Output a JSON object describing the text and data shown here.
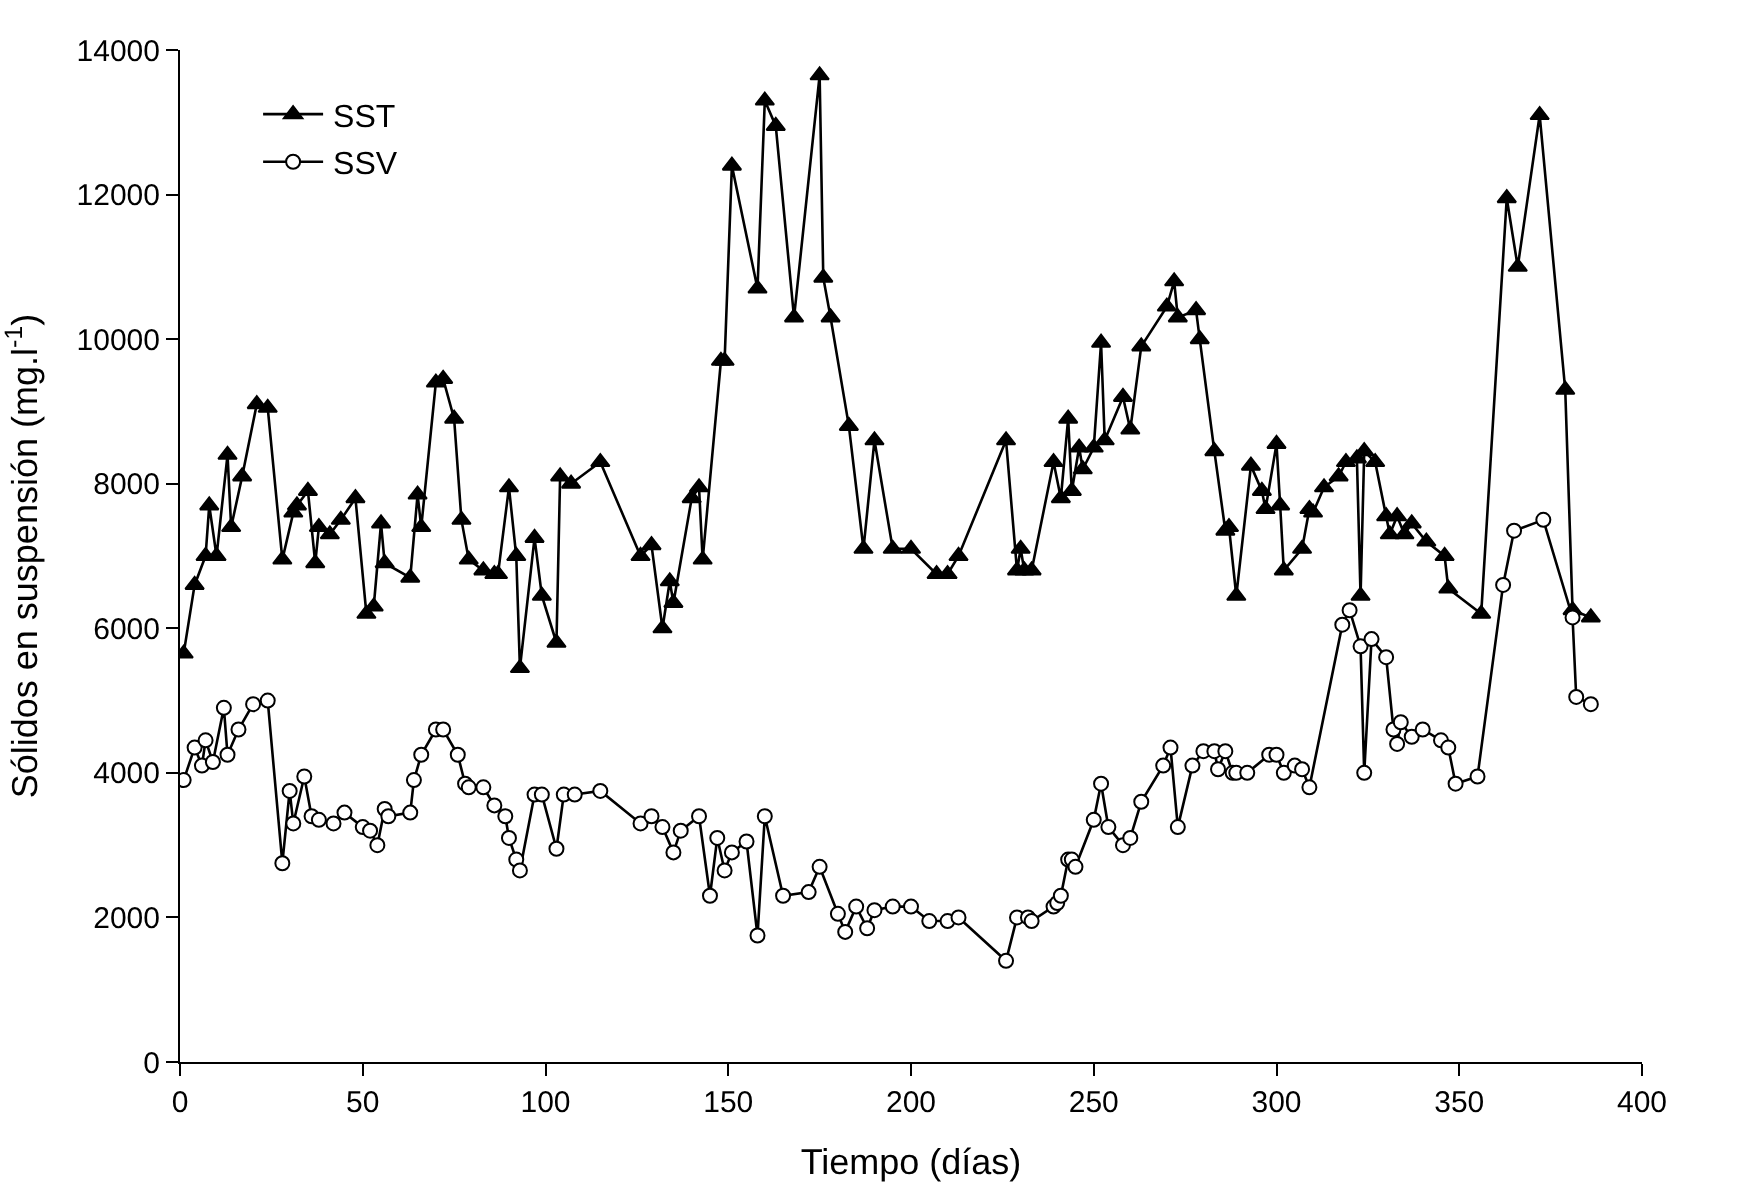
{
  "chart_data": {
    "type": "line",
    "xlabel": "Tiempo (días)",
    "ylabel": "Sólidos en suspensión (mg.l$^{-1}$)",
    "xlim": [
      0,
      400
    ],
    "xticks": [
      0,
      50,
      100,
      150,
      200,
      250,
      300,
      350,
      400
    ],
    "ylim": [
      0,
      14000
    ],
    "yticks": [
      0,
      2000,
      4000,
      6000,
      8000,
      10000,
      12000,
      14000
    ],
    "legend": "top left",
    "series": [
      {
        "name": "SST",
        "color": "#000000",
        "marker": "triangle",
        "x": [
          1,
          4,
          7,
          8,
          10,
          13,
          14,
          17,
          21,
          24,
          28,
          31,
          32,
          35,
          37,
          38,
          41,
          44,
          48,
          51,
          53,
          55,
          56,
          63,
          65,
          66,
          70,
          72,
          75,
          77,
          79,
          83,
          86,
          87,
          90,
          92,
          93,
          97,
          99,
          103,
          104,
          107,
          115,
          126,
          129,
          132,
          134,
          135,
          140,
          142,
          143,
          148,
          149,
          151,
          158,
          160,
          163,
          168,
          175,
          176,
          178,
          183,
          187,
          190,
          195,
          200,
          207,
          210,
          213,
          226,
          229,
          230,
          231,
          233,
          239,
          241,
          243,
          244,
          246,
          247,
          250,
          252,
          253,
          258,
          260,
          263,
          270,
          272,
          273,
          278,
          279,
          283,
          286,
          287,
          289,
          293,
          296,
          297,
          300,
          301,
          302,
          307,
          309,
          310,
          313,
          317,
          319,
          322,
          323,
          324,
          327,
          330,
          331,
          333,
          335,
          337,
          341,
          346,
          347,
          356,
          363,
          366,
          372,
          379,
          381,
          386
        ],
        "values": [
          5650,
          6600,
          7000,
          7700,
          7000,
          8400,
          7400,
          8100,
          9100,
          9050,
          6950,
          7600,
          7700,
          7900,
          6900,
          7400,
          7300,
          7500,
          7800,
          6200,
          6300,
          7450,
          6900,
          6700,
          7850,
          7400,
          9400,
          9450,
          8900,
          7500,
          6950,
          6800,
          6750,
          6750,
          7950,
          7000,
          5450,
          7250,
          6450,
          5800,
          8100,
          8000,
          8300,
          7000,
          7150,
          6000,
          6650,
          6350,
          7800,
          7950,
          6950,
          9700,
          9700,
          12400,
          10700,
          13300,
          12950,
          10300,
          13650,
          10850,
          10300,
          8800,
          7100,
          8600,
          7100,
          7100,
          6750,
          6750,
          7000,
          8600,
          6800,
          7100,
          6800,
          6800,
          8300,
          7800,
          8900,
          7900,
          8500,
          8200,
          8500,
          9950,
          8600,
          9200,
          8750,
          9900,
          10450,
          10800,
          10300,
          10400,
          10000,
          8450,
          7350,
          7400,
          6450,
          8250,
          7900,
          7650,
          8550,
          7700,
          6800,
          7100,
          7650,
          7600,
          7950,
          8100,
          8300,
          8350,
          6450,
          8450,
          8300,
          7550,
          7300,
          7550,
          7300,
          7450,
          7200,
          7000,
          6550,
          6200,
          11950,
          11000,
          13100,
          9300,
          6250,
          6150
        ]
      },
      {
        "name": "SSV",
        "color": "#000000",
        "marker": "circle",
        "x": [
          1,
          4,
          6,
          7,
          9,
          12,
          13,
          16,
          20,
          24,
          28,
          30,
          31,
          34,
          36,
          38,
          42,
          45,
          50,
          52,
          54,
          56,
          57,
          63,
          64,
          66,
          70,
          72,
          76,
          78,
          79,
          83,
          86,
          89,
          90,
          92,
          93,
          97,
          99,
          103,
          105,
          108,
          115,
          126,
          129,
          132,
          135,
          137,
          142,
          145,
          147,
          149,
          151,
          155,
          158,
          160,
          165,
          172,
          175,
          180,
          182,
          185,
          188,
          190,
          195,
          200,
          205,
          210,
          213,
          226,
          229,
          232,
          233,
          239,
          240,
          241,
          243,
          244,
          245,
          250,
          252,
          254,
          258,
          260,
          263,
          269,
          271,
          273,
          277,
          280,
          283,
          284,
          286,
          288,
          289,
          292,
          298,
          300,
          302,
          305,
          307,
          309,
          318,
          320,
          323,
          324,
          326,
          330,
          332,
          333,
          334,
          337,
          340,
          345,
          347,
          349,
          355,
          362,
          365,
          373,
          381,
          382,
          386
        ],
        "values": [
          3900,
          4350,
          4100,
          4450,
          4150,
          4900,
          4250,
          4600,
          4950,
          5000,
          2750,
          3750,
          3300,
          3950,
          3400,
          3350,
          3300,
          3450,
          3250,
          3200,
          3000,
          3500,
          3400,
          3450,
          3900,
          4250,
          4600,
          4600,
          4250,
          3850,
          3800,
          3800,
          3550,
          3400,
          3100,
          2800,
          2650,
          3700,
          3700,
          2950,
          3700,
          3700,
          3750,
          3300,
          3400,
          3250,
          2900,
          3200,
          3400,
          2300,
          3100,
          2650,
          2900,
          3050,
          1750,
          3400,
          2300,
          2350,
          2700,
          2050,
          1800,
          2150,
          1850,
          2100,
          2150,
          2150,
          1950,
          1950,
          2000,
          1400,
          2000,
          2000,
          1950,
          2150,
          2200,
          2300,
          2800,
          2800,
          2700,
          3350,
          3850,
          3250,
          3000,
          3100,
          3600,
          4100,
          4350,
          3250,
          4100,
          4300,
          4300,
          4050,
          4300,
          4000,
          4000,
          4000,
          4250,
          4250,
          4000,
          4100,
          4050,
          3800,
          6050,
          6250,
          5750,
          4000,
          5850,
          5600,
          4600,
          4400,
          4700,
          4500,
          4600,
          4450,
          4350,
          3850,
          3950,
          6600,
          7350,
          7500,
          6150,
          5050,
          4950
        ]
      }
    ]
  }
}
